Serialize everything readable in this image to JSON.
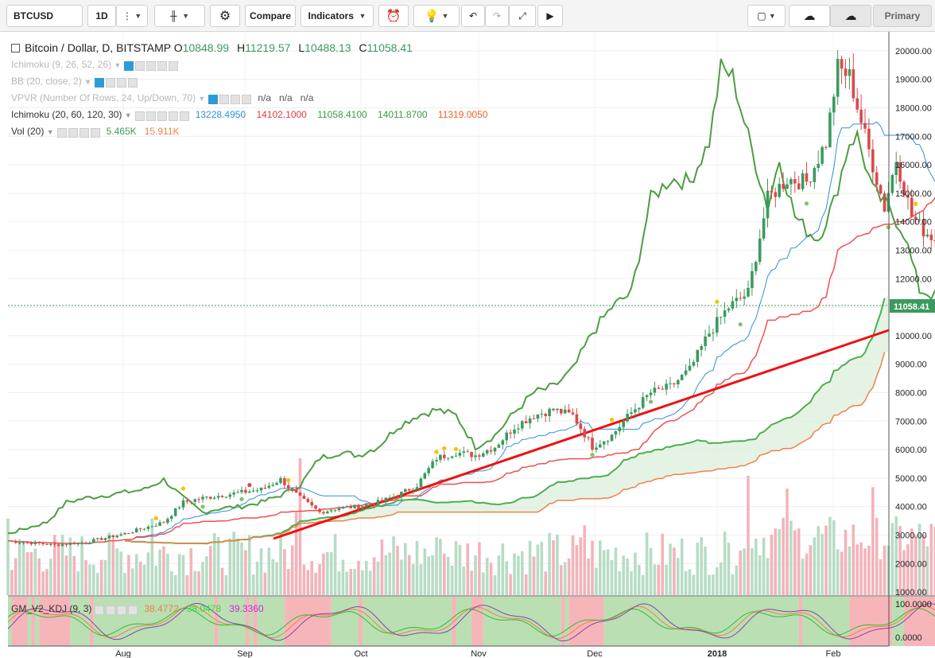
{
  "toolbar": {
    "symbol": "BTCUSD",
    "interval": "1D",
    "compare_label": "Compare",
    "indicators_label": "Indicators",
    "primary_label": "Primary"
  },
  "legend": {
    "title": "Bitcoin / Dollar, D, BITSTAMP",
    "o_label": "O",
    "o_value": "10848.99",
    "h_label": "H",
    "h_value": "11219.57",
    "l_label": "L",
    "l_value": "10488.13",
    "c_label": "C",
    "c_value": "11058.41",
    "ind1": "Ichimoku (9, 26, 52, 26)",
    "ind2": "BB (20, close, 2)",
    "ind3": "VPVR (Number Of Rows, 24, Up/Down, 70)",
    "ind3_v1": "n/a",
    "ind3_v2": "n/a",
    "ind3_v3": "n/a",
    "ind4": "Ichimoku (20, 60, 120, 30)",
    "ind4_vals": [
      "13228.4950",
      "14102.1000",
      "11058.4100",
      "14011.8700",
      "11319.0050"
    ],
    "vol": "Vol (20)",
    "vol_v1": "5.465K",
    "vol_v2": "15.911K",
    "kdj": "GM_V2_KDJ (9, 3)",
    "kdj_vals": [
      "38.4772",
      "38.0478",
      "39.3360"
    ]
  },
  "colors": {
    "up": "#3c9a5f",
    "down": "#d94a4a",
    "volume_up": "#b7dcc4",
    "volume_down": "#f3b3ba",
    "tenkan": "#2f8fd8",
    "kijun": "#f0504f",
    "span_a": "#4caf50",
    "span_b": "#f0814a",
    "chikou": "#4c9e40",
    "trend": "#ee1111",
    "cloud": "#dff0dd"
  },
  "chart_data": {
    "type": "candlestick",
    "price_ticks": [
      "20000.00",
      "19000.00",
      "18000.00",
      "17000.00",
      "16000.00",
      "15000.00",
      "14000.00",
      "13000.00",
      "12000.00",
      "11000.00",
      "10000.00",
      "9000.00",
      "8000.00",
      "7000.00",
      "6000.00",
      "5000.00",
      "4000.00",
      "3000.00",
      "2000.00",
      "1000.00"
    ],
    "last_price_label": "11058.41",
    "kdj_ticks": [
      "100.0000",
      "0.0000"
    ],
    "x_labels": [
      "Aug",
      "Sep",
      "Oct",
      "Nov",
      "Dec",
      "2018",
      "Feb"
    ],
    "ylim": [
      1000,
      20500
    ]
  }
}
